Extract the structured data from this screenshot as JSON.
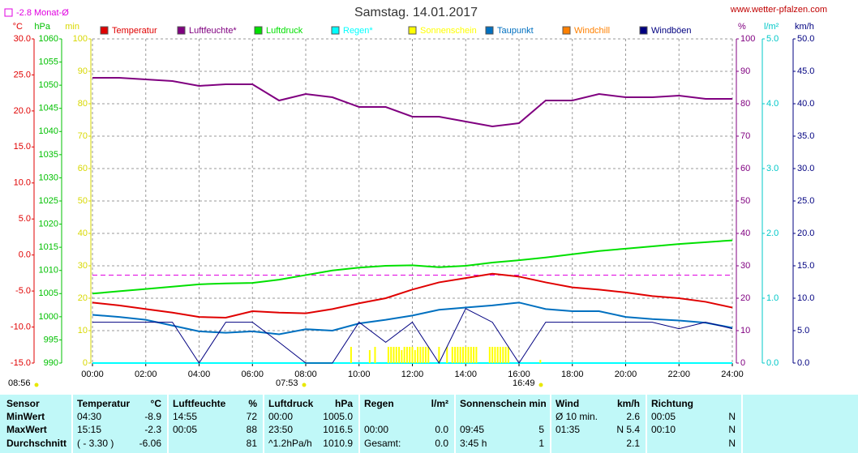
{
  "chart_data": {
    "type": "line",
    "title": "Samstag. 14.01.2017",
    "source": "www.wetter-pfalzen.com",
    "monthly_avg": {
      "label": "-2.8 Monat-Ø",
      "value": -2.8,
      "color": "#e000e0"
    },
    "time_marks": [
      "08:56",
      "07:53",
      "16:49"
    ],
    "xlim": [
      0,
      24
    ],
    "xticks": [
      {
        "value": 0,
        "label": "00:00"
      },
      {
        "value": 2,
        "label": "02:00"
      },
      {
        "value": 4,
        "label": "04:00"
      },
      {
        "value": 6,
        "label": "06:00"
      },
      {
        "value": 8,
        "label": "08:00"
      },
      {
        "value": 10,
        "label": "10:00"
      },
      {
        "value": 12,
        "label": "12:00"
      },
      {
        "value": 14,
        "label": "14:00"
      },
      {
        "value": 16,
        "label": "16:00"
      },
      {
        "value": 18,
        "label": "18:00"
      },
      {
        "value": 20,
        "label": "20:00"
      },
      {
        "value": 22,
        "label": "22:00"
      },
      {
        "value": 24,
        "label": "24:00"
      }
    ],
    "grid": true,
    "grid_axis": 3,
    "axes": [
      {
        "unit": "°C",
        "side": "left",
        "color": "#e00000",
        "lim": [
          -15,
          30
        ],
        "ticks": [
          {
            "value": -15,
            "label": "-15.0"
          },
          {
            "value": -10,
            "label": "-10.0"
          },
          {
            "value": -5,
            "label": "-5.0"
          },
          {
            "value": 0,
            "label": "0.0"
          },
          {
            "value": 5,
            "label": "5.0"
          },
          {
            "value": 10,
            "label": "10.0"
          },
          {
            "value": 15,
            "label": "15.0"
          },
          {
            "value": 20,
            "label": "20.0"
          },
          {
            "value": 25,
            "label": "25.0"
          },
          {
            "value": 30,
            "label": "30.0"
          }
        ]
      },
      {
        "unit": "hPa",
        "side": "left",
        "color": "#00c000",
        "lim": [
          990,
          1060
        ],
        "ticks": [
          990,
          995,
          1000,
          1005,
          1010,
          1015,
          1020,
          1025,
          1030,
          1035,
          1040,
          1045,
          1050,
          1055,
          1060
        ]
      },
      {
        "unit": "min",
        "side": "left",
        "color": "#d8d800",
        "lim": [
          0,
          100
        ],
        "ticks": [
          0,
          10,
          20,
          30,
          40,
          50,
          60,
          70,
          80,
          90,
          100
        ]
      },
      {
        "unit": "%",
        "side": "right",
        "color": "#800080",
        "lim": [
          0,
          100
        ],
        "ticks": [
          0,
          10,
          20,
          30,
          40,
          50,
          60,
          70,
          80,
          90,
          100
        ]
      },
      {
        "unit": "l/m²",
        "side": "right",
        "color": "#00c8c8",
        "lim": [
          0,
          5
        ],
        "ticks": [
          {
            "value": 0,
            "label": "0.0"
          },
          {
            "value": 1,
            "label": "1.0"
          },
          {
            "value": 2,
            "label": "2.0"
          },
          {
            "value": 3,
            "label": "3.0"
          },
          {
            "value": 4,
            "label": "4.0"
          },
          {
            "value": 5,
            "label": "5.0"
          }
        ]
      },
      {
        "unit": "km/h",
        "side": "right",
        "color": "#000080",
        "lim": [
          0,
          50
        ],
        "ticks": [
          {
            "value": 0,
            "label": "0.0"
          },
          {
            "value": 5,
            "label": "5.0"
          },
          {
            "value": 10,
            "label": "10.0"
          },
          {
            "value": 15,
            "label": "15.0"
          },
          {
            "value": 20,
            "label": "20.0"
          },
          {
            "value": 25,
            "label": "25.0"
          },
          {
            "value": 30,
            "label": "30.0"
          },
          {
            "value": 35,
            "label": "35.0"
          },
          {
            "value": 40,
            "label": "40.0"
          },
          {
            "value": 45,
            "label": "45.0"
          },
          {
            "value": 50,
            "label": "50.0"
          }
        ]
      }
    ],
    "x": [
      0,
      1,
      2,
      3,
      4,
      5,
      6,
      7,
      8,
      9,
      10,
      11,
      12,
      13,
      14,
      15,
      16,
      17,
      18,
      19,
      20,
      21,
      22,
      23,
      24
    ],
    "series": [
      {
        "name": "Temperatur",
        "color": "#e00000",
        "axis": 0,
        "style": "line",
        "values": [
          -6.6,
          -7.0,
          -7.5,
          -8.0,
          -8.6,
          -8.7,
          -7.8,
          -8.0,
          -8.1,
          -7.5,
          -6.7,
          -6.0,
          -4.8,
          -3.8,
          -3.2,
          -2.6,
          -3.0,
          -3.8,
          -4.5,
          -4.8,
          -5.2,
          -5.7,
          -6.0,
          -6.5,
          -7.3
        ]
      },
      {
        "name": "Luftfeuchte*",
        "color": "#800080",
        "axis": 3,
        "style": "line",
        "values": [
          88,
          88,
          87.5,
          87,
          85.5,
          86,
          86,
          81,
          83,
          82,
          79,
          79,
          76,
          76,
          74.5,
          73,
          74,
          81,
          81,
          83,
          82,
          82,
          82.5,
          81.5,
          81.5
        ]
      },
      {
        "name": "Luftdruck",
        "color": "#00e000",
        "axis": 1,
        "style": "line",
        "values": [
          1005.0,
          1005.5,
          1006.0,
          1006.5,
          1007.0,
          1007.2,
          1007.3,
          1008.0,
          1009.0,
          1010.0,
          1010.6,
          1011.0,
          1011.1,
          1010.7,
          1011.0,
          1011.7,
          1012.2,
          1012.8,
          1013.5,
          1014.2,
          1014.7,
          1015.2,
          1015.7,
          1016.1,
          1016.5
        ]
      },
      {
        "name": "Regen*",
        "color": "#00ffff",
        "axis": 4,
        "style": "line",
        "values": [
          0,
          0,
          0,
          0,
          0,
          0,
          0,
          0,
          0,
          0,
          0,
          0,
          0,
          0,
          0,
          0,
          0,
          0,
          0,
          0,
          0,
          0,
          0,
          0,
          0
        ]
      },
      {
        "name": "Sonnenschein",
        "color": "#ffff00",
        "axis": 2,
        "style": "bar",
        "x": [
          9.7,
          10.4,
          10.6,
          11.1,
          11.2,
          11.3,
          11.4,
          11.5,
          11.6,
          11.7,
          11.8,
          11.9,
          12.0,
          12.1,
          12.2,
          12.3,
          12.4,
          12.5,
          12.6,
          13.0,
          13.3,
          13.5,
          13.6,
          13.7,
          13.8,
          13.9,
          14.0,
          14.1,
          14.2,
          14.3,
          14.4,
          14.9,
          15.0,
          15.1,
          15.2,
          15.3,
          15.4,
          15.5,
          15.6,
          16.8
        ],
        "values": [
          5,
          4,
          5,
          5,
          5,
          5,
          5,
          5,
          4,
          5,
          5,
          5,
          5,
          4,
          5,
          5,
          5,
          5,
          5,
          5,
          5,
          5,
          5,
          5,
          5,
          5,
          5,
          5,
          5,
          5,
          5,
          5,
          5,
          5,
          5,
          5,
          5,
          5,
          5,
          1
        ]
      },
      {
        "name": "Taupunkt",
        "color": "#0070c0",
        "axis": 0,
        "style": "line",
        "values": [
          -8.3,
          -8.6,
          -9.0,
          -9.8,
          -10.6,
          -10.8,
          -10.6,
          -11.0,
          -10.3,
          -10.5,
          -9.5,
          -9.0,
          -8.4,
          -7.6,
          -7.3,
          -7.0,
          -6.6,
          -7.5,
          -7.8,
          -7.8,
          -8.6,
          -8.9,
          -9.1,
          -9.4,
          -10.1
        ]
      },
      {
        "name": "Windchill",
        "color": "#ff8000",
        "axis": 0,
        "style": "line",
        "values": [
          null,
          null,
          null,
          null,
          null,
          null,
          null,
          null,
          null,
          null,
          null,
          null,
          null,
          null,
          null,
          null,
          null,
          null,
          null,
          null,
          null,
          null,
          null,
          null,
          null
        ]
      },
      {
        "name": "Windböen",
        "color": "#000080",
        "axis": 5,
        "style": "line",
        "values": [
          6.3,
          6.3,
          6.3,
          6.3,
          0,
          6.3,
          6.3,
          3.2,
          0,
          0,
          6.3,
          3.2,
          6.3,
          0,
          8.4,
          6.3,
          0,
          6.3,
          6.3,
          6.3,
          6.3,
          6.3,
          5.3,
          6.3,
          5.3
        ]
      }
    ]
  },
  "table": {
    "rows": [
      [
        "Sensor",
        "Temperatur",
        "°C",
        "Luftfeuchte",
        "%",
        "Luftdruck",
        "hPa",
        "Regen",
        "l/m²",
        "Sonnenschein min",
        null,
        "Wind",
        "km/h",
        "Richtung",
        null
      ],
      [
        "MinWert",
        "04:30",
        "-8.9",
        "14:55",
        "72",
        "00:00",
        "1005.0",
        null,
        null,
        null,
        null,
        "Ø 10 min.",
        "2.6",
        "00:05",
        "N"
      ],
      [
        "MaxWert",
        "15:15",
        "-2.3",
        "00:05",
        "88",
        "23:50",
        "1016.5",
        "00:00",
        "0.0",
        "09:45",
        "5",
        "01:35",
        "N 5.4",
        "00:10",
        "N"
      ],
      [
        "Durchschnitt",
        "( - 3.30 )",
        "-6.06",
        null,
        "81",
        "^1.2hPa/h",
        "1010.9",
        "Gesamt:",
        "0.0",
        "3:45 h",
        "1",
        null,
        "2.1",
        null,
        "N"
      ]
    ]
  }
}
